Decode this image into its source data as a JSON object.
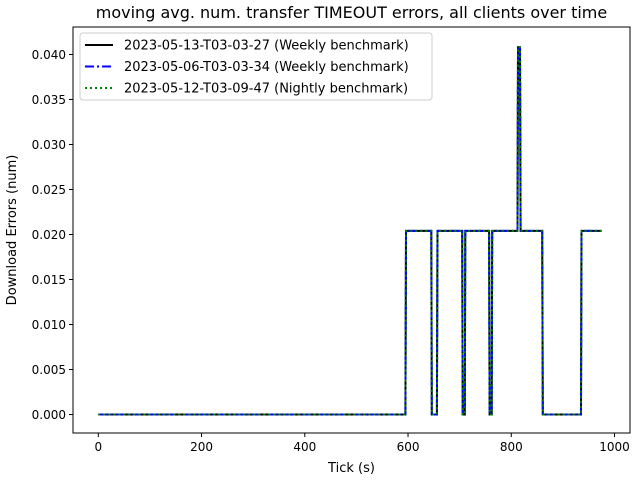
{
  "chart_data": {
    "type": "line",
    "title": "moving avg. num. transfer TIMEOUT errors, all clients over time",
    "xlabel": "Tick (s)",
    "ylabel": "Download Errors (num)",
    "xlim": [
      -49,
      1030
    ],
    "ylim": [
      -0.00205,
      0.04305
    ],
    "xticks": [
      0,
      200,
      400,
      600,
      800,
      1000
    ],
    "xtick_labels": [
      "0",
      "200",
      "400",
      "600",
      "800",
      "1000"
    ],
    "yticks": [
      0.0,
      0.005,
      0.01,
      0.015,
      0.02,
      0.025,
      0.03,
      0.035,
      0.04
    ],
    "ytick_labels": [
      "0.000",
      "0.005",
      "0.010",
      "0.015",
      "0.020",
      "0.025",
      "0.030",
      "0.035",
      "0.040"
    ],
    "grid": false,
    "legend_position": "top-left",
    "x": [
      0,
      595,
      596,
      645,
      646,
      656,
      657,
      705,
      706,
      710,
      711,
      757,
      758,
      762,
      763,
      812,
      813,
      817,
      818,
      860,
      861,
      935,
      936,
      975
    ],
    "series": [
      {
        "name": "2023-05-13-T03-03-27 (Weekly benchmark)",
        "color": "#000000",
        "style": "solid",
        "values": [
          0,
          0,
          0.0204,
          0.0204,
          0,
          0,
          0.0204,
          0.0204,
          0,
          0,
          0.0204,
          0.0204,
          0,
          0,
          0.0204,
          0.0204,
          0.0408,
          0.0408,
          0.0204,
          0.0204,
          0,
          0,
          0.0204,
          0.0204
        ]
      },
      {
        "name": "2023-05-06-T03-03-34 (Weekly benchmark)",
        "color": "#0000ff",
        "style": "dashdot",
        "values": [
          0,
          0,
          0.0204,
          0.0204,
          0,
          0,
          0.0204,
          0.0204,
          0,
          0,
          0.0204,
          0.0204,
          0,
          0,
          0.0204,
          0.0204,
          0.0408,
          0.0408,
          0.0204,
          0.0204,
          0,
          0,
          0.0204,
          0.0204
        ]
      },
      {
        "name": "2023-05-12-T03-09-47 (Nightly benchmark)",
        "color": "#008000",
        "style": "dotted",
        "values": [
          0,
          0,
          0.0204,
          0.0204,
          0,
          0,
          0.0204,
          0.0204,
          0,
          0,
          0.0204,
          0.0204,
          0,
          0,
          0.0204,
          0.0204,
          0.0408,
          0.0408,
          0.0204,
          0.0204,
          0,
          0,
          0.0204,
          0.0204
        ]
      }
    ]
  }
}
